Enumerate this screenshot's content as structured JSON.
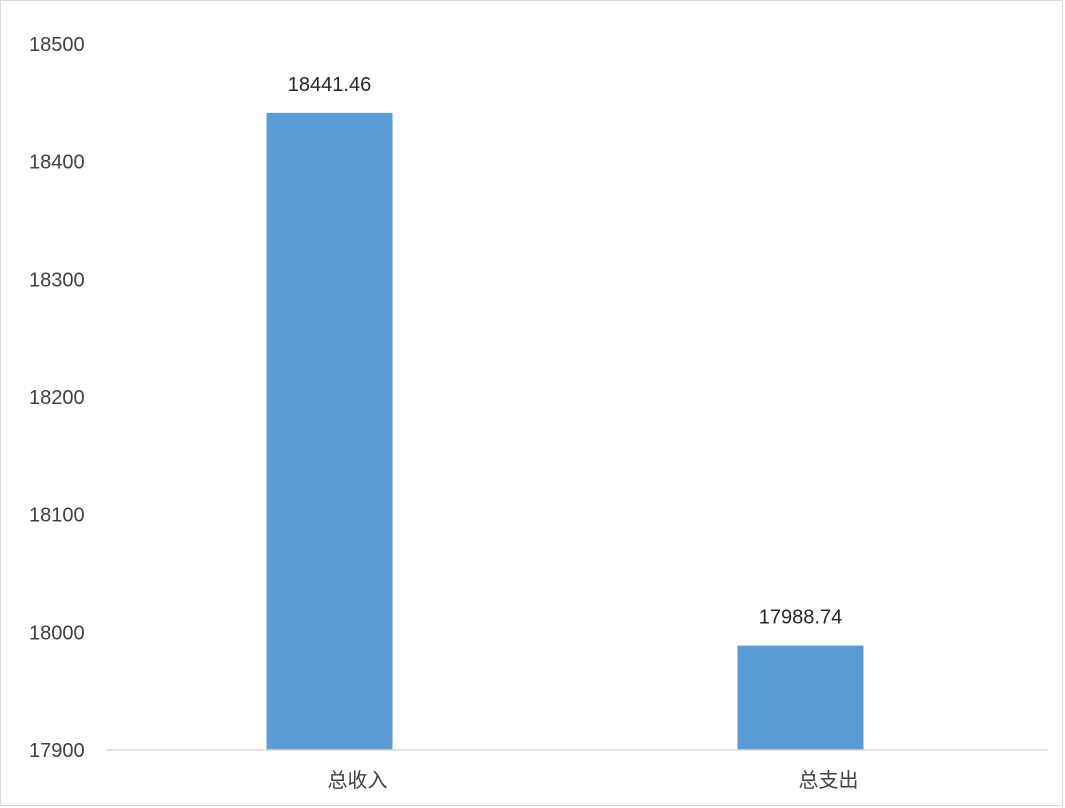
{
  "chart_data": {
    "type": "bar",
    "categories": [
      "总收入",
      "总支出"
    ],
    "values": [
      18441.46,
      17988.74
    ],
    "data_labels": [
      "18441.46",
      "17988.74"
    ],
    "ylim": [
      17900,
      18500
    ],
    "yticks": [
      17900,
      18000,
      18100,
      18200,
      18300,
      18400,
      18500
    ],
    "title": "",
    "xlabel": "",
    "ylabel": "",
    "grid": false,
    "legend": "none",
    "bar_color": "#5b9bd5"
  }
}
